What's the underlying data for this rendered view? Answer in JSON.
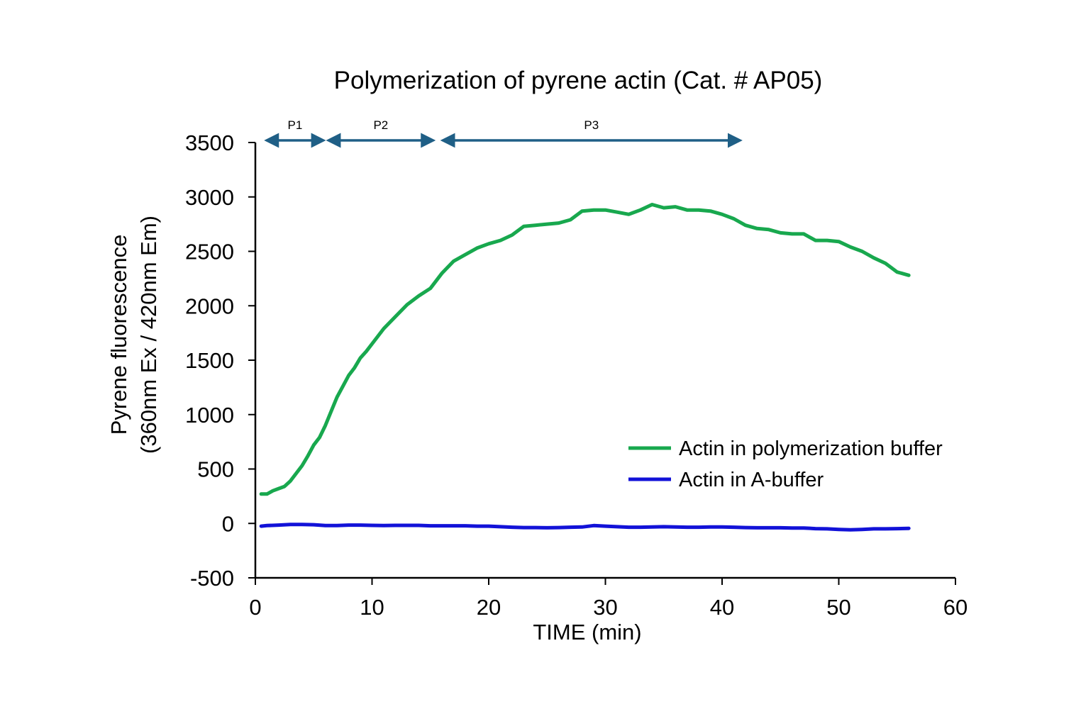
{
  "chart_data": {
    "type": "line",
    "title": "Polymerization of pyrene actin (Cat. # AP05)",
    "xlabel": "TIME (min)",
    "ylabel": [
      "Pyrene fluorescence",
      "(360nm Ex / 420nm Em)"
    ],
    "xlim": [
      0,
      60
    ],
    "ylim": [
      -500,
      3500
    ],
    "xticks": [
      0,
      10,
      20,
      30,
      40,
      50,
      60
    ],
    "yticks": [
      -500,
      0,
      500,
      1000,
      1500,
      2000,
      2500,
      3000,
      3500
    ],
    "legend_position": "lower-right",
    "colors": {
      "polymerization": "#18a84e",
      "abuffer": "#1212d8",
      "phase_arrow": "#1f5f86"
    },
    "phases": [
      {
        "label": "P1",
        "start": 1,
        "end": 5.8
      },
      {
        "label": "P2",
        "start": 6.3,
        "end": 15.2
      },
      {
        "label": "P3",
        "start": 16.1,
        "end": 41.5
      }
    ],
    "series": [
      {
        "name": "Actin in polymerization buffer",
        "color": "#18a84e",
        "x": [
          0.5,
          1.0,
          1.5,
          2.0,
          2.5,
          3.0,
          3.5,
          4.0,
          4.5,
          5.0,
          5.5,
          6.0,
          6.5,
          7.0,
          7.5,
          8.0,
          8.5,
          9.0,
          9.5,
          10.0,
          11.0,
          12.0,
          13.0,
          14.0,
          15.0,
          16.0,
          17.0,
          18.0,
          19.0,
          20.0,
          21.0,
          22.0,
          23.0,
          24.0,
          25.0,
          26.0,
          27.0,
          28.0,
          29.0,
          30.0,
          31.0,
          32.0,
          33.0,
          34.0,
          35.0,
          36.0,
          37.0,
          38.0,
          39.0,
          40.0,
          41.0,
          42.0,
          43.0,
          44.0,
          45.0,
          46.0,
          47.0,
          48.0,
          49.0,
          50.0,
          51.0,
          52.0,
          53.0,
          54.0,
          55.0,
          56.0
        ],
        "values": [
          270,
          270,
          300,
          320,
          340,
          390,
          460,
          530,
          620,
          720,
          790,
          900,
          1030,
          1160,
          1260,
          1360,
          1430,
          1520,
          1580,
          1650,
          1790,
          1900,
          2010,
          2090,
          2160,
          2300,
          2410,
          2470,
          2530,
          2570,
          2600,
          2650,
          2730,
          2740,
          2750,
          2760,
          2790,
          2870,
          2880,
          2880,
          2860,
          2840,
          2880,
          2930,
          2900,
          2910,
          2880,
          2880,
          2870,
          2840,
          2800,
          2740,
          2710,
          2700,
          2670,
          2660,
          2660,
          2600,
          2600,
          2590,
          2540,
          2500,
          2440,
          2390,
          2310,
          2280
        ]
      },
      {
        "name": "Actin in A-buffer",
        "color": "#1212d8",
        "x": [
          0.5,
          1.0,
          2.0,
          3.0,
          4.0,
          5.0,
          6.0,
          7.0,
          8.0,
          9.0,
          10.0,
          11.0,
          12.0,
          13.0,
          14.0,
          15.0,
          16.0,
          17.0,
          18.0,
          19.0,
          20.0,
          21.0,
          22.0,
          23.0,
          24.0,
          25.0,
          26.0,
          27.0,
          28.0,
          29.0,
          30.0,
          31.0,
          32.0,
          33.0,
          34.0,
          35.0,
          36.0,
          37.0,
          38.0,
          39.0,
          40.0,
          41.0,
          42.0,
          43.0,
          44.0,
          45.0,
          46.0,
          47.0,
          48.0,
          49.0,
          50.0,
          51.0,
          52.0,
          53.0,
          54.0,
          55.0,
          56.0
        ],
        "values": [
          -25,
          -20,
          -15,
          -10,
          -10,
          -12,
          -20,
          -20,
          -15,
          -15,
          -18,
          -20,
          -18,
          -18,
          -18,
          -22,
          -22,
          -22,
          -22,
          -25,
          -25,
          -30,
          -35,
          -38,
          -38,
          -40,
          -38,
          -35,
          -33,
          -20,
          -25,
          -30,
          -35,
          -35,
          -32,
          -30,
          -32,
          -35,
          -35,
          -33,
          -33,
          -35,
          -38,
          -40,
          -40,
          -40,
          -42,
          -42,
          -48,
          -50,
          -55,
          -58,
          -55,
          -50,
          -50,
          -48,
          -45
        ]
      }
    ]
  }
}
